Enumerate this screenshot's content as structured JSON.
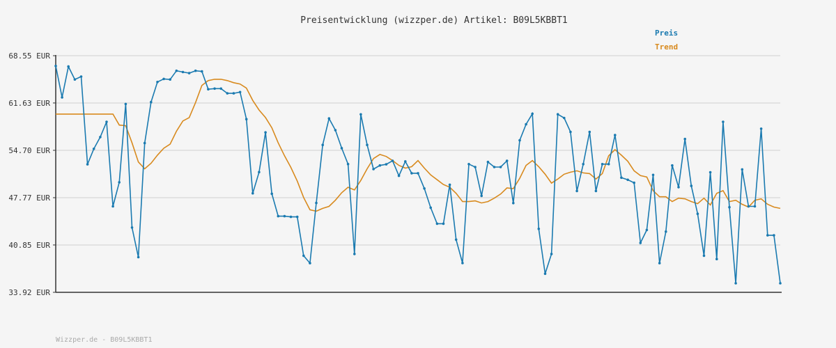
{
  "chart_data": {
    "type": "line",
    "title": "Preisentwicklung (wizzper.de) Artikel: B09L5KBBT1",
    "footer": "Wizzper.de - B09L5KBBT1",
    "ylim": [
      33.92,
      68.55
    ],
    "yticks": [
      68.55,
      61.63,
      54.7,
      47.77,
      40.85,
      33.92
    ],
    "ytick_labels": [
      "68.55 EUR",
      "61.63 EUR",
      "54.70 EUR",
      "47.77 EUR",
      "40.85 EUR",
      "33.92 EUR"
    ],
    "grid": true,
    "legend": "top-right",
    "colors": {
      "preis": "#1a7ab0",
      "trend": "#d88a1e",
      "grid": "#e2e2e2",
      "axis": "#333333"
    },
    "series": [
      {
        "name": "Preis",
        "values": [
          67.04,
          62.45,
          66.96,
          65.07,
          65.49,
          52.65,
          54.92,
          56.64,
          58.87,
          46.5,
          50.02,
          61.48,
          43.4,
          39.06,
          55.76,
          61.76,
          64.7,
          65.15,
          65.07,
          66.34,
          66.16,
          65.99,
          66.34,
          66.25,
          63.64,
          63.73,
          63.73,
          63.04,
          63.04,
          63.22,
          59.26,
          48.41,
          51.51,
          57.33,
          48.34,
          45.06,
          45.06,
          44.96,
          44.96,
          39.28,
          38.19,
          47.0,
          55.49,
          59.36,
          57.65,
          55.01,
          52.68,
          39.53,
          59.96,
          55.49,
          51.95,
          52.49,
          52.65,
          53.17,
          50.97,
          53.08,
          51.35,
          51.35,
          49.12,
          46.31,
          43.96,
          43.96,
          49.67,
          41.63,
          38.2,
          52.68,
          52.25,
          48.04,
          53.0,
          52.25,
          52.25,
          53.17,
          46.98,
          56.16,
          58.51,
          60.06,
          43.21,
          36.64,
          39.53,
          59.97,
          59.43,
          57.4,
          48.75,
          52.68,
          57.4,
          48.75,
          52.68,
          52.68,
          56.93,
          50.7,
          50.39,
          49.95,
          41.15,
          43.05,
          51.1,
          38.19,
          42.8,
          52.49,
          49.31,
          56.36,
          49.49,
          45.41,
          39.28,
          51.49,
          38.79,
          58.87,
          46.38,
          35.24,
          51.91,
          46.5,
          46.5,
          57.87,
          42.26,
          42.26,
          35.24
        ],
        "color": "#1a7ab0"
      },
      {
        "name": "Trend",
        "values": [
          60.0,
          60.0,
          60.0,
          60.0,
          60.0,
          60.0,
          60.0,
          60.0,
          60.0,
          60.0,
          58.4,
          58.3,
          55.8,
          53.0,
          52.0,
          52.8,
          54.0,
          55.0,
          55.6,
          57.5,
          59.0,
          59.5,
          61.7,
          64.2,
          64.9,
          65.1,
          65.1,
          64.9,
          64.6,
          64.4,
          63.8,
          62.0,
          60.6,
          59.5,
          58.0,
          55.8,
          53.9,
          52.2,
          50.2,
          47.8,
          46.0,
          45.8,
          46.2,
          46.5,
          47.4,
          48.5,
          49.3,
          48.9,
          50.3,
          52.0,
          53.5,
          54.1,
          53.8,
          53.2,
          52.5,
          52.1,
          52.3,
          53.2,
          52.1,
          51.1,
          50.4,
          49.7,
          49.3,
          48.4,
          47.2,
          47.2,
          47.3,
          47.0,
          47.2,
          47.7,
          48.3,
          49.2,
          49.1,
          50.6,
          52.5,
          53.2,
          52.3,
          51.2,
          49.9,
          50.5,
          51.2,
          51.5,
          51.7,
          51.4,
          51.3,
          50.5,
          51.3,
          53.9,
          54.8,
          54.0,
          53.1,
          51.7,
          51.0,
          50.8,
          48.8,
          47.9,
          47.9,
          47.2,
          47.7,
          47.6,
          47.2,
          46.9,
          47.7,
          46.7,
          48.4,
          48.8,
          47.2,
          47.4,
          46.8,
          46.4,
          47.4,
          47.6,
          46.8,
          46.4,
          46.2
        ],
        "color": "#d88a1e"
      }
    ]
  }
}
